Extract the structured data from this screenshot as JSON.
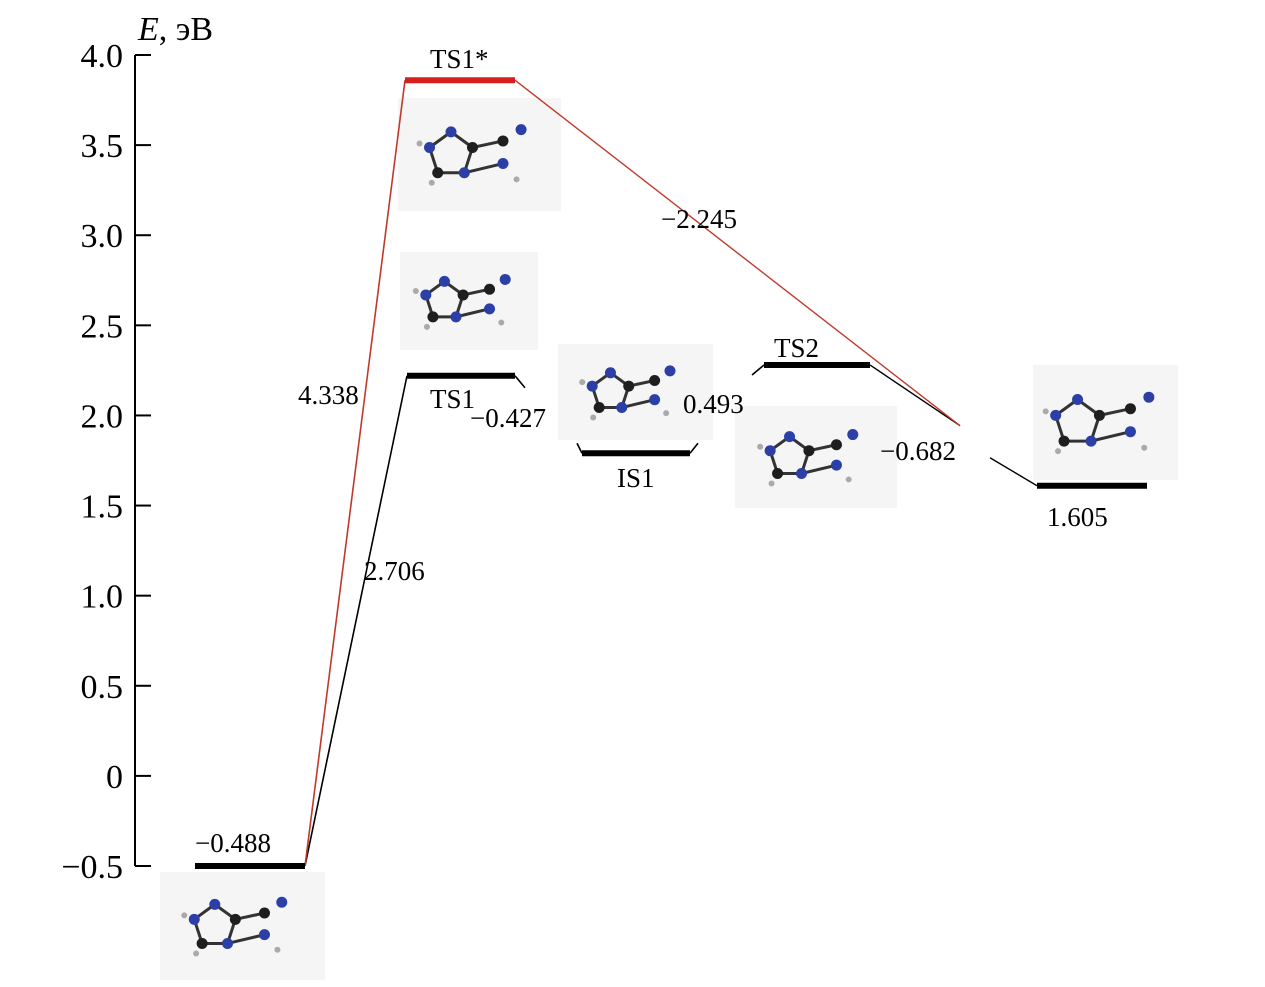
{
  "chart_data": {
    "type": "line",
    "ylabel_symbol": "E",
    "ylabel_unit": ", эВ",
    "ylim": [
      -0.5,
      4.0
    ],
    "y_ticks": [
      "4.0",
      "3.5",
      "3.0",
      "2.5",
      "2.0",
      "1.5",
      "1.0",
      "0.5",
      "0",
      "−0.5"
    ],
    "y_tick_values": [
      4.0,
      3.5,
      3.0,
      2.5,
      2.0,
      1.5,
      1.0,
      0.5,
      0,
      -0.5
    ],
    "levels": [
      {
        "label": "",
        "energy": -0.5,
        "color": "#000000"
      },
      {
        "label": "TS1*",
        "energy": 3.86,
        "color": "#d62020"
      },
      {
        "label": "TS1",
        "energy": 2.22,
        "color": "#000000"
      },
      {
        "label": "IS1",
        "energy": 1.79,
        "color": "#000000"
      },
      {
        "label": "TS2",
        "energy": 2.28,
        "color": "#000000"
      },
      {
        "label": "",
        "energy": 1.61,
        "color": "#000000"
      }
    ],
    "annotations": [
      "−0.488",
      "4.338",
      "2.706",
      "−0.427",
      "0.493",
      "−2.245",
      "−0.682",
      "1.605"
    ],
    "pathway_colors": {
      "main": "#000000",
      "alt": "#c0392b"
    }
  }
}
